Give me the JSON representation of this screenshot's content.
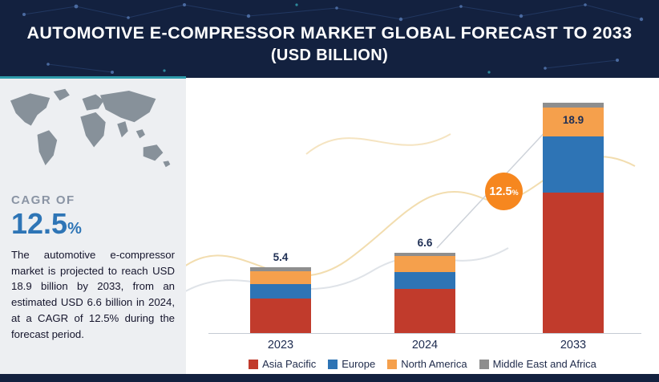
{
  "header": {
    "title_line1": "AUTOMOTIVE E-COMPRESSOR MARKET GLOBAL FORECAST TO 2033",
    "title_line2": "(USD BILLION)"
  },
  "sidebar": {
    "cagr_label": "CAGR OF",
    "cagr_value": "12.5",
    "cagr_percent": "%",
    "description": "The automotive e-compressor market is projected to reach USD 18.9 billion by 2033, from an estimated USD 6.6 billion in 2024, at a CAGR of 12.5% during the forecast period."
  },
  "chart_data": {
    "type": "bar",
    "stacked": true,
    "title": "Automotive E-Compressor Market Global Forecast (USD Billion)",
    "categories": [
      "2023",
      "2024",
      "2033"
    ],
    "series": [
      {
        "name": "Asia Pacific",
        "color": "#c13b2c",
        "values": [
          2.8,
          3.6,
          11.5
        ]
      },
      {
        "name": "Europe",
        "color": "#2e74b5",
        "values": [
          1.2,
          1.4,
          4.6
        ]
      },
      {
        "name": "North America",
        "color": "#f5a04c",
        "values": [
          1.1,
          1.3,
          2.4
        ]
      },
      {
        "name": "Middle East and Africa",
        "color": "#8e8e8e",
        "values": [
          0.3,
          0.3,
          0.4
        ]
      }
    ],
    "total_labels": [
      "5.4",
      "6.6",
      "18.9"
    ],
    "label_inside": [
      false,
      false,
      true
    ],
    "cagr_badge": {
      "text": "12.5",
      "suffix": "%",
      "color": "#f6871f"
    },
    "xlabel": "",
    "ylabel": "",
    "axis": {
      "ylim": [
        0,
        20
      ],
      "gridlines": false
    },
    "legend_position": "bottom"
  }
}
